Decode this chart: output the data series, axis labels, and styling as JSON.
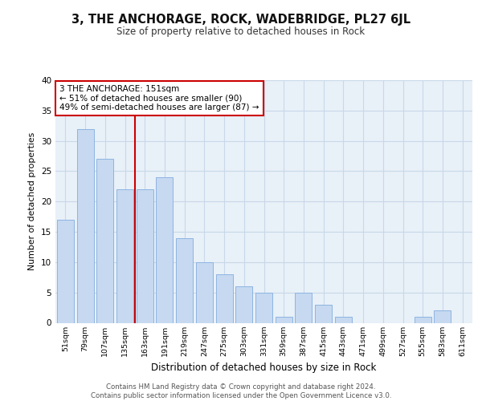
{
  "title": "3, THE ANCHORAGE, ROCK, WADEBRIDGE, PL27 6JL",
  "subtitle": "Size of property relative to detached houses in Rock",
  "xlabel": "Distribution of detached houses by size in Rock",
  "ylabel": "Number of detached properties",
  "categories": [
    "51sqm",
    "79sqm",
    "107sqm",
    "135sqm",
    "163sqm",
    "191sqm",
    "219sqm",
    "247sqm",
    "275sqm",
    "303sqm",
    "331sqm",
    "359sqm",
    "387sqm",
    "415sqm",
    "443sqm",
    "471sqm",
    "499sqm",
    "527sqm",
    "555sqm",
    "583sqm",
    "611sqm"
  ],
  "values": [
    17,
    32,
    27,
    22,
    22,
    24,
    14,
    10,
    8,
    6,
    5,
    1,
    5,
    3,
    1,
    0,
    0,
    0,
    1,
    2,
    0
  ],
  "bar_color": "#c6d9f0",
  "bar_edge_color": "#8db4e2",
  "vline_x": 3.5,
  "vline_color": "#cc0000",
  "annotation_text": "3 THE ANCHORAGE: 151sqm\n← 51% of detached houses are smaller (90)\n49% of semi-detached houses are larger (87) →",
  "annotation_box_color": "#ffffff",
  "annotation_box_edge": "#cc0000",
  "grid_color": "#c8d8e8",
  "background_color": "#e8f0f8",
  "footer": "Contains HM Land Registry data © Crown copyright and database right 2024.\nContains public sector information licensed under the Open Government Licence v3.0.",
  "ylim": [
    0,
    40
  ],
  "yticks": [
    0,
    5,
    10,
    15,
    20,
    25,
    30,
    35,
    40
  ]
}
